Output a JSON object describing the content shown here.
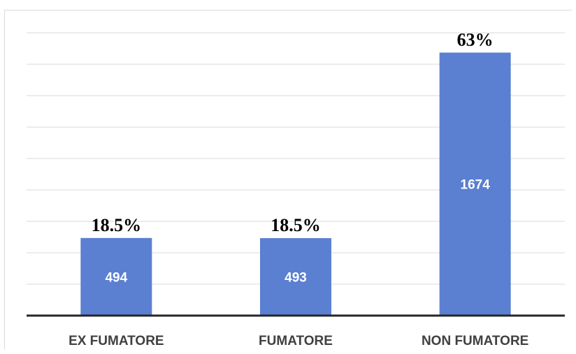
{
  "chart_data": {
    "type": "bar",
    "categories": [
      "EX FUMATORE",
      "FUMATORE",
      "NON FUMATORE"
    ],
    "values": [
      494,
      493,
      1674
    ],
    "percent_labels": [
      "18.5%",
      "18.5%",
      "63%"
    ],
    "value_labels": [
      "494",
      "493",
      "1674"
    ],
    "ylim": [
      0,
      1800
    ],
    "grid": true,
    "bar_color": "#5b7fd1",
    "axis_color": "#262626",
    "grid_color": "#d9d9d9"
  }
}
